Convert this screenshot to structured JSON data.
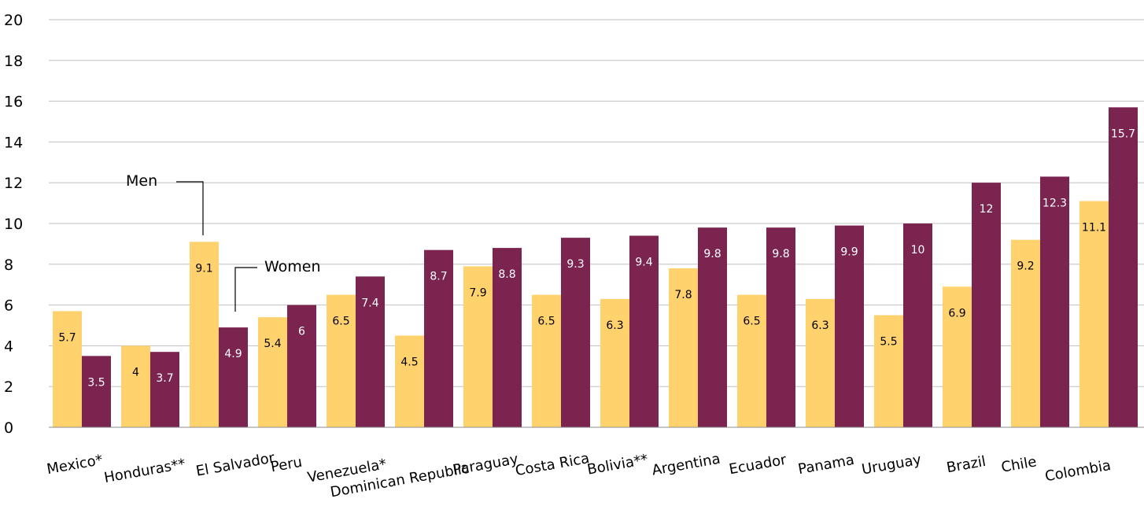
{
  "chart_data": {
    "type": "bar",
    "categories": [
      "Mexico*",
      "Honduras**",
      "El Salvador",
      "Peru",
      "Venezuela*",
      "Dominican Republic",
      "Paraguay",
      "Costa Rica",
      "Bolivia**",
      "Argentina",
      "Ecuador",
      "Panama",
      "Uruguay",
      "Brazil",
      "Chile",
      "Colombia"
    ],
    "series": [
      {
        "name": "Men",
        "color": "#ffd26e",
        "label_color": "#000000",
        "values": [
          5.7,
          4,
          9.1,
          5.4,
          6.5,
          4.5,
          7.9,
          6.5,
          6.3,
          7.8,
          6.5,
          6.3,
          5.5,
          6.9,
          9.2,
          11.1
        ]
      },
      {
        "name": "Women",
        "color": "#7b2450",
        "label_color": "#ffffff",
        "values": [
          3.5,
          3.7,
          4.9,
          6,
          7.4,
          8.7,
          8.8,
          9.3,
          9.4,
          9.8,
          9.8,
          9.9,
          10,
          12,
          12.3,
          15.7
        ]
      }
    ],
    "y_ticks": [
      "0",
      "2",
      "4",
      "6",
      "8",
      "10",
      "12",
      "14",
      "16",
      "18",
      "20"
    ],
    "ylim": [
      0,
      20
    ],
    "grid": true,
    "legend": "inline callouts"
  },
  "annotations": {
    "men": "Men",
    "women": "Women"
  }
}
